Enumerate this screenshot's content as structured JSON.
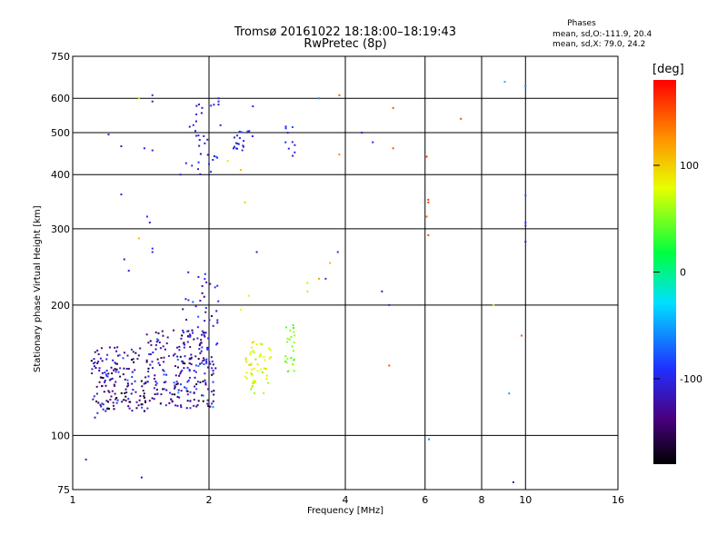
{
  "chart_data": {
    "type": "scatter",
    "title": "Tromsø 20161022 18:18:00–18:19:43",
    "subtitle": "RwPretec (8p)",
    "xlabel": "Frequency [MHz]",
    "ylabel": "Stationary phase Virtual Height [km]",
    "x_scale": "log",
    "y_scale": "log",
    "xlim": [
      1,
      16
    ],
    "ylim": [
      75,
      750
    ],
    "x_ticks": [
      1,
      2,
      4,
      6,
      8,
      10,
      16
    ],
    "y_ticks": [
      75,
      100,
      200,
      300,
      400,
      500,
      600,
      750
    ],
    "x_tick_labels": [
      "1",
      "2",
      "4",
      "6",
      "8",
      "10",
      "16"
    ],
    "y_tick_labels": [
      "75",
      "100",
      "200",
      "300",
      "400",
      "500",
      "600",
      "750"
    ],
    "grid": true,
    "annotation": {
      "heading": "Phases",
      "line_o": "mean, sd,O:-111.9, 20.4",
      "line_x": "mean, sd,X:  79.0, 24.2"
    },
    "colorbar": {
      "label": "[deg]",
      "min": -180,
      "max": 180,
      "ticks": [
        100,
        0,
        -100
      ],
      "tick_labels": [
        "100",
        "0",
        "-100"
      ]
    },
    "clusters": [
      {
        "x_range": [
          1.1,
          1.45
        ],
        "y_range": [
          112,
          160
        ],
        "count": 160,
        "phase": -130,
        "phase_sd": 25
      },
      {
        "x_range": [
          1.45,
          2.05
        ],
        "y_range": [
          115,
          175
        ],
        "count": 220,
        "phase": -120,
        "phase_sd": 25
      },
      {
        "x_range": [
          1.75,
          2.1
        ],
        "y_range": [
          140,
          240
        ],
        "count": 50,
        "phase": -105,
        "phase_sd": 20
      },
      {
        "x_range": [
          1.8,
          2.1
        ],
        "y_range": [
          400,
          585
        ],
        "count": 30,
        "phase": -105,
        "phase_sd": 15
      },
      {
        "x_range": [
          2.25,
          2.5
        ],
        "y_range": [
          455,
          505
        ],
        "count": 20,
        "phase": -100,
        "phase_sd": 10
      },
      {
        "x_range": [
          2.4,
          2.75
        ],
        "y_range": [
          125,
          165
        ],
        "count": 55,
        "phase": 75,
        "phase_sd": 12
      },
      {
        "x_range": [
          2.95,
          3.1
        ],
        "y_range": [
          140,
          180
        ],
        "count": 25,
        "phase": 55,
        "phase_sd": 12
      },
      {
        "x_range": [
          2.95,
          3.1
        ],
        "y_range": [
          430,
          520
        ],
        "count": 10,
        "phase": -100,
        "phase_sd": 10
      }
    ],
    "points": [
      [
        1.07,
        88,
        -110
      ],
      [
        1.12,
        110,
        -120
      ],
      [
        1.2,
        495,
        -100
      ],
      [
        1.28,
        465,
        -110
      ],
      [
        1.28,
        360,
        -100
      ],
      [
        1.3,
        255,
        -110
      ],
      [
        1.33,
        240,
        -105
      ],
      [
        1.4,
        600,
        95
      ],
      [
        1.44,
        460,
        -100
      ],
      [
        1.46,
        320,
        -95
      ],
      [
        1.48,
        310,
        -100
      ],
      [
        1.5,
        610,
        -100
      ],
      [
        1.5,
        590,
        -110
      ],
      [
        1.5,
        455,
        -110
      ],
      [
        1.5,
        270,
        -95
      ],
      [
        1.5,
        265,
        -100
      ],
      [
        1.42,
        80,
        -120
      ],
      [
        1.4,
        285,
        110
      ],
      [
        1.73,
        400,
        -105
      ],
      [
        1.78,
        425,
        -100
      ],
      [
        2.05,
        580,
        -100
      ],
      [
        2.1,
        590,
        -105
      ],
      [
        2.12,
        520,
        -100
      ],
      [
        2.1,
        600,
        -100
      ],
      [
        2.35,
        410,
        110
      ],
      [
        2.2,
        430,
        90
      ],
      [
        2.4,
        345,
        100
      ],
      [
        2.5,
        575,
        -100
      ],
      [
        2.55,
        265,
        -110
      ],
      [
        2.35,
        195,
        80
      ],
      [
        2.45,
        210,
        85
      ],
      [
        3.3,
        215,
        60
      ],
      [
        3.3,
        225,
        60
      ],
      [
        3.5,
        230,
        120
      ],
      [
        3.62,
        230,
        -90
      ],
      [
        3.7,
        250,
        110
      ],
      [
        3.85,
        265,
        -100
      ],
      [
        3.88,
        445,
        130
      ],
      [
        3.88,
        610,
        150
      ],
      [
        3.5,
        600,
        -60
      ],
      [
        4.35,
        500,
        -100
      ],
      [
        4.6,
        475,
        -100
      ],
      [
        4.82,
        215,
        -110
      ],
      [
        5.0,
        200,
        -105
      ],
      [
        5.0,
        145,
        150
      ],
      [
        5.1,
        570,
        150
      ],
      [
        5.1,
        460,
        150
      ],
      [
        6.05,
        440,
        160
      ],
      [
        6.1,
        350,
        160
      ],
      [
        6.1,
        345,
        160
      ],
      [
        6.05,
        320,
        140
      ],
      [
        6.1,
        290,
        155
      ],
      [
        6.12,
        98,
        -60
      ],
      [
        7.2,
        538,
        150
      ],
      [
        8.5,
        200,
        70
      ],
      [
        9.0,
        655,
        -40
      ],
      [
        9.2,
        125,
        -50
      ],
      [
        9.4,
        78,
        -130
      ],
      [
        9.8,
        170,
        150
      ],
      [
        10.0,
        640,
        -60
      ],
      [
        10.0,
        358,
        -80
      ],
      [
        10.0,
        310,
        -90
      ],
      [
        10.0,
        305,
        -100
      ],
      [
        10.0,
        280,
        -110
      ]
    ]
  }
}
